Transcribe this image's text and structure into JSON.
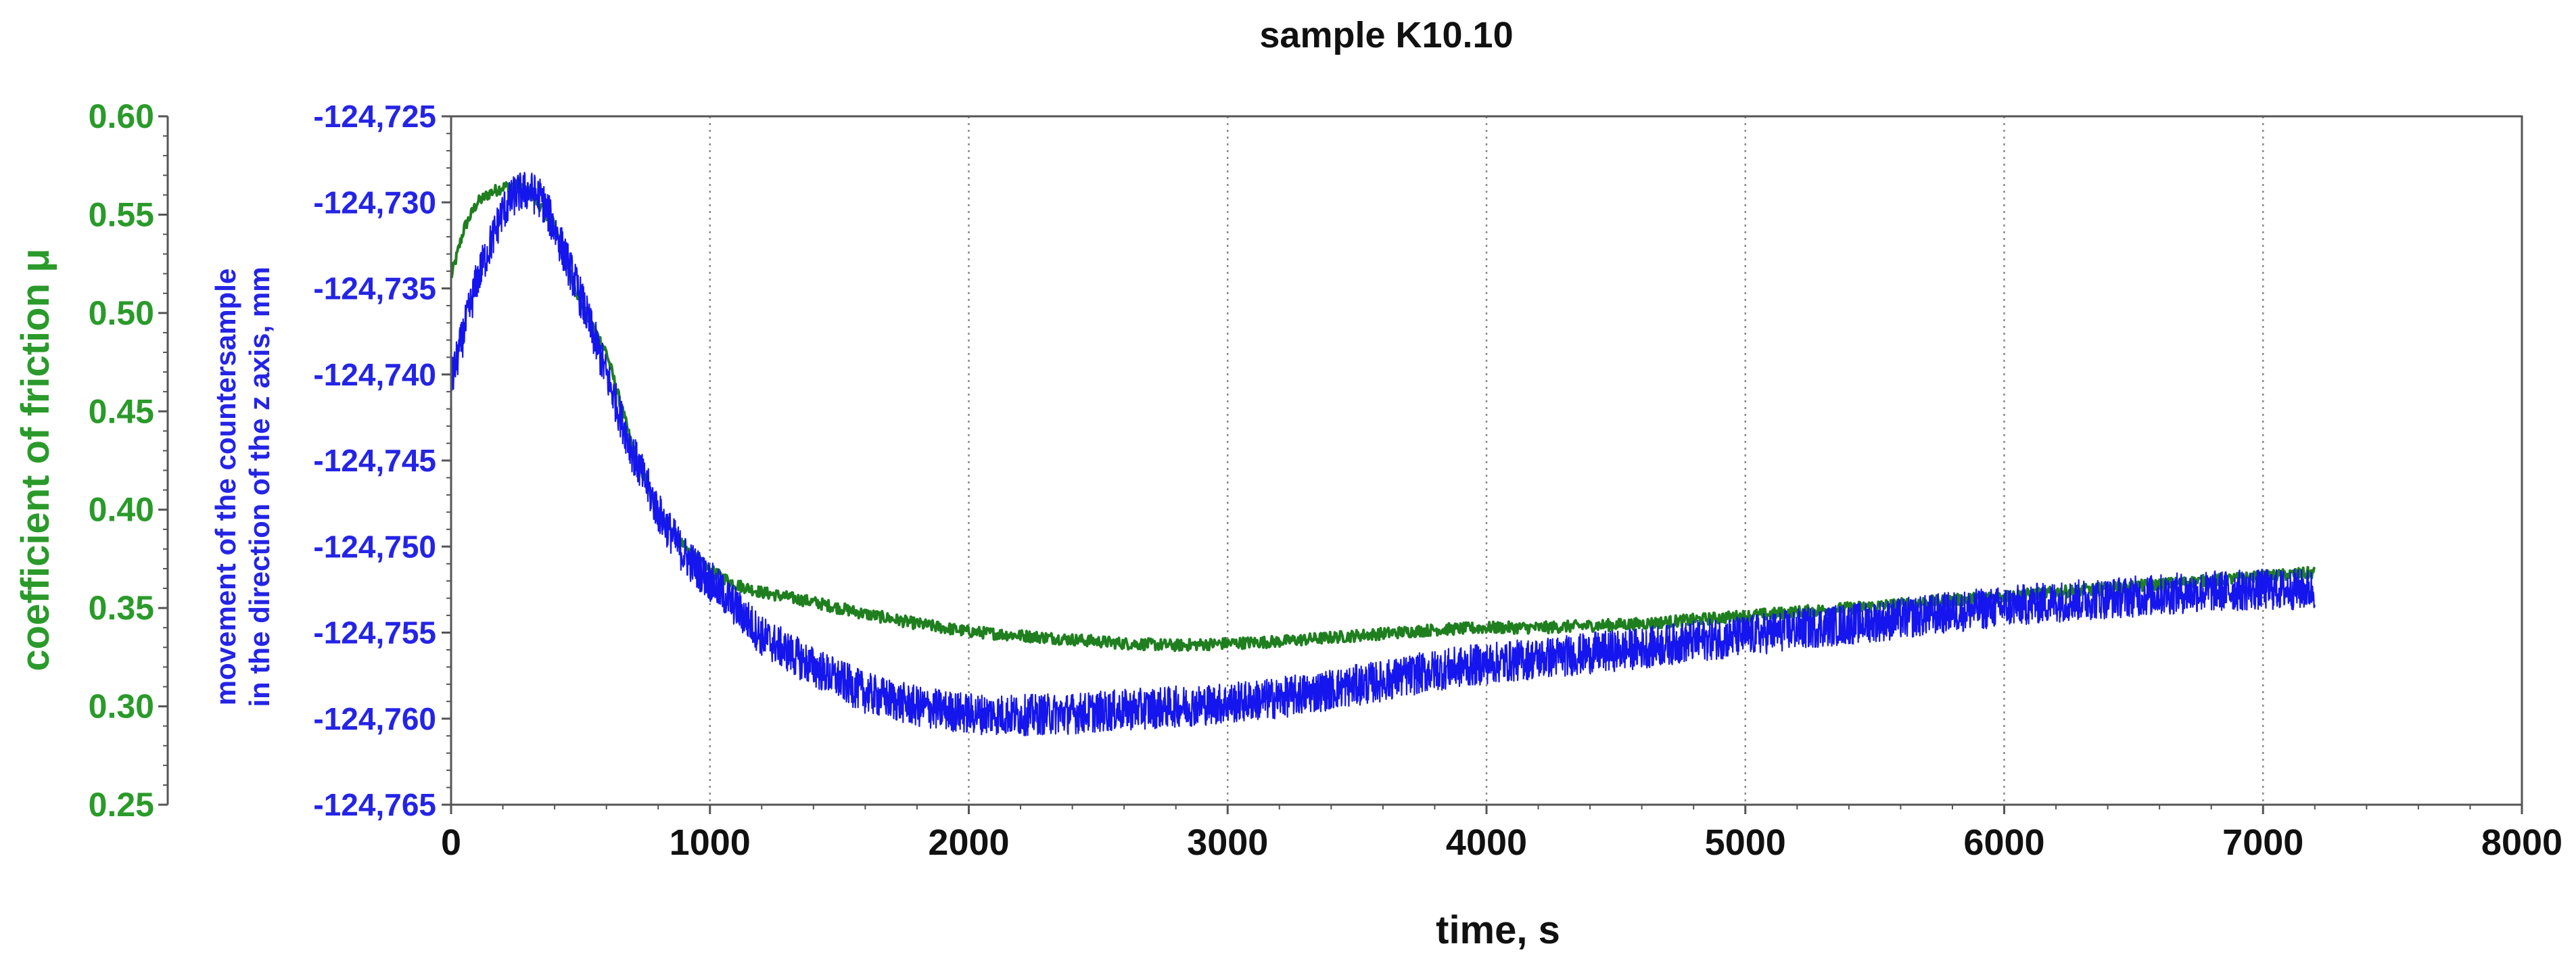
{
  "chart_data": {
    "type": "line",
    "title": "sample K10.10",
    "xlabel": "time, s",
    "x_ticks": [
      "0",
      "1000",
      "2000",
      "3000",
      "4000",
      "5000",
      "6000",
      "7000",
      "8000"
    ],
    "xlim": [
      0,
      8000
    ],
    "grid": "vertical dotted lines at each x tick",
    "y_left": {
      "label": "coefficient of friction μ",
      "ticks": [
        "0.60",
        "0.55",
        "0.50",
        "0.45",
        "0.40",
        "0.35",
        "0.30",
        "0.25"
      ],
      "ylim": [
        0.25,
        0.6
      ],
      "color": "#2a9a2a"
    },
    "y_right": {
      "label_lines": [
        "movement of the countersample",
        "in the direction of the z axis, mm"
      ],
      "ticks": [
        "-124,725",
        "-124,730",
        "-124,735",
        "-124,740",
        "-124,745",
        "-124,750",
        "-124,755",
        "-124,760",
        "-124,765"
      ],
      "ylim": [
        -124.765,
        -124.725
      ],
      "color": "#2424e6"
    },
    "series": [
      {
        "name": "coefficient of friction",
        "axis": "left",
        "color": "#1f7f1f",
        "noise": 0.003,
        "x": [
          0,
          50,
          100,
          150,
          200,
          250,
          300,
          400,
          500,
          600,
          700,
          800,
          900,
          1000,
          1100,
          1200,
          1400,
          1600,
          1800,
          2000,
          2200,
          2400,
          2600,
          2800,
          3000,
          3200,
          3400,
          3600,
          3800,
          4000,
          4200,
          4400,
          4600,
          4800,
          5000,
          5200,
          5400,
          5600,
          5800,
          6000,
          6200,
          6400,
          6600,
          6800,
          7000,
          7200
        ],
        "y": [
          0.518,
          0.543,
          0.556,
          0.561,
          0.564,
          0.565,
          0.562,
          0.545,
          0.505,
          0.48,
          0.432,
          0.398,
          0.381,
          0.369,
          0.362,
          0.358,
          0.353,
          0.347,
          0.342,
          0.338,
          0.336,
          0.334,
          0.332,
          0.331,
          0.332,
          0.333,
          0.335,
          0.337,
          0.339,
          0.34,
          0.34,
          0.341,
          0.342,
          0.344,
          0.346,
          0.348,
          0.35,
          0.352,
          0.354,
          0.356,
          0.358,
          0.36,
          0.362,
          0.364,
          0.366,
          0.368
        ]
      },
      {
        "name": "z-axis movement of the countersample",
        "axis": "right",
        "color": "#1515ee",
        "noise": 0.0012,
        "x": [
          0,
          50,
          100,
          150,
          200,
          250,
          300,
          350,
          400,
          500,
          600,
          700,
          800,
          900,
          1000,
          1100,
          1200,
          1400,
          1600,
          1800,
          2000,
          2200,
          2400,
          2600,
          2800,
          3000,
          3200,
          3400,
          3600,
          3800,
          4000,
          4200,
          4400,
          4600,
          4800,
          5000,
          5200,
          5400,
          5600,
          5800,
          6000,
          6200,
          6400,
          6600,
          6800,
          7000,
          7200
        ],
        "y": [
          -124.7405,
          -124.7375,
          -124.7345,
          -124.7325,
          -124.7305,
          -124.7295,
          -124.7293,
          -124.7298,
          -124.7315,
          -124.7355,
          -124.74,
          -124.7445,
          -124.748,
          -124.7505,
          -124.752,
          -124.7535,
          -124.7552,
          -124.757,
          -124.7585,
          -124.7593,
          -124.7597,
          -124.7598,
          -124.7597,
          -124.7595,
          -124.7593,
          -124.7591,
          -124.7588,
          -124.7583,
          -124.7578,
          -124.7572,
          -124.7568,
          -124.7565,
          -124.7562,
          -124.7559,
          -124.7555,
          -124.7552,
          -124.7548,
          -124.7545,
          -124.7542,
          -124.7538,
          -124.7535,
          -124.7532,
          -124.753,
          -124.7528,
          -124.7526,
          -124.7525,
          -124.7525
        ]
      }
    ]
  }
}
